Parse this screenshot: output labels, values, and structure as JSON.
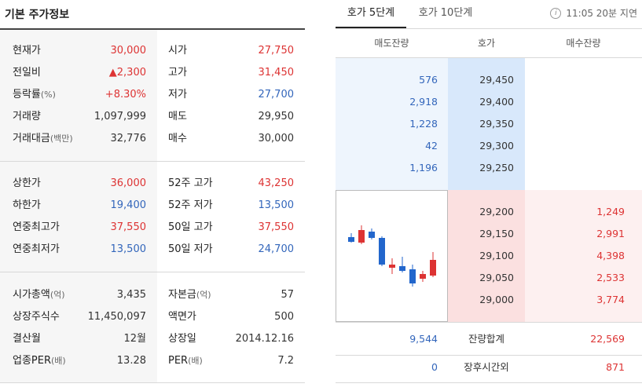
{
  "left": {
    "title": "기본 주가정보",
    "group1": [
      {
        "label1": "현재가",
        "label1_sub": "",
        "value1": "30,000",
        "c1": "red",
        "label2": "시가",
        "label2_sub": "",
        "value2": "27,750",
        "c2": "red"
      },
      {
        "label1": "전일비",
        "label1_sub": "",
        "value1": "▲2,300",
        "c1": "red",
        "label2": "고가",
        "label2_sub": "",
        "value2": "31,450",
        "c2": "red"
      },
      {
        "label1": "등락률",
        "label1_sub": "(%)",
        "value1": "+8.30%",
        "c1": "red",
        "label2": "저가",
        "label2_sub": "",
        "value2": "27,700",
        "c2": "blue"
      },
      {
        "label1": "거래량",
        "label1_sub": "",
        "value1": "1,097,999",
        "c1": "dark",
        "label2": "매도",
        "label2_sub": "",
        "value2": "29,950",
        "c2": "dark"
      },
      {
        "label1": "거래대금",
        "label1_sub": "(백만)",
        "value1": "32,776",
        "c1": "dark",
        "label2": "매수",
        "label2_sub": "",
        "value2": "30,000",
        "c2": "dark"
      }
    ],
    "group2": [
      {
        "label1": "상한가",
        "label1_sub": "",
        "value1": "36,000",
        "c1": "red",
        "label2": "52주 고가",
        "label2_sub": "",
        "value2": "43,250",
        "c2": "red"
      },
      {
        "label1": "하한가",
        "label1_sub": "",
        "value1": "19,400",
        "c1": "blue",
        "label2": "52주 저가",
        "label2_sub": "",
        "value2": "13,500",
        "c2": "blue"
      },
      {
        "label1": "연중최고가",
        "label1_sub": "",
        "value1": "37,550",
        "c1": "red",
        "label2": "50일 고가",
        "label2_sub": "",
        "value2": "37,550",
        "c2": "red"
      },
      {
        "label1": "연중최저가",
        "label1_sub": "",
        "value1": "13,500",
        "c1": "blue",
        "label2": "50일 저가",
        "label2_sub": "",
        "value2": "24,700",
        "c2": "blue"
      }
    ],
    "group3": [
      {
        "label1": "시가총액",
        "label1_sub": "(억)",
        "value1": "3,435",
        "c1": "dark",
        "label2": "자본금",
        "label2_sub": "(억)",
        "value2": "57",
        "c2": "dark"
      },
      {
        "label1": "상장주식수",
        "label1_sub": "",
        "value1": "11,450,097",
        "c1": "dark",
        "label2": "액면가",
        "label2_sub": "",
        "value2": "500",
        "c2": "dark"
      },
      {
        "label1": "결산월",
        "label1_sub": "",
        "value1": "12월",
        "c1": "dark",
        "label2": "상장일",
        "label2_sub": "",
        "value2": "2014.12.16",
        "c2": "dark"
      },
      {
        "label1": "업종PER",
        "label1_sub": "(배)",
        "value1": "13.28",
        "c1": "dark",
        "label2": "PER",
        "label2_sub": "(배)",
        "value2": "7.2",
        "c2": "dark"
      }
    ]
  },
  "right": {
    "tabs": [
      "호가 5단계",
      "호가 10단계"
    ],
    "delay_text": "11:05 20분 지연",
    "info_icon": "i",
    "headers": [
      "매도잔량",
      "호가",
      "매수잔량"
    ],
    "asks": [
      {
        "qty": "576",
        "price": "29,450"
      },
      {
        "qty": "2,918",
        "price": "29,400"
      },
      {
        "qty": "1,228",
        "price": "29,350"
      },
      {
        "qty": "42",
        "price": "29,300"
      },
      {
        "qty": "1,196",
        "price": "29,250"
      }
    ],
    "bids": [
      {
        "price": "29,200",
        "qty": "1,249"
      },
      {
        "price": "29,150",
        "qty": "2,991"
      },
      {
        "price": "29,100",
        "qty": "4,398"
      },
      {
        "price": "29,050",
        "qty": "2,533"
      },
      {
        "price": "29,000",
        "qty": "3,774"
      }
    ],
    "summary": [
      {
        "left": "9,544",
        "label": "잔량합계",
        "right": "22,569"
      },
      {
        "left": "0",
        "label": "장후시간외",
        "right": "871"
      }
    ],
    "colors": {
      "up": "#dd3333",
      "down": "#2266cc",
      "ask_bg": "#eef5fd",
      "bid_bg": "#fdf0f0"
    }
  }
}
